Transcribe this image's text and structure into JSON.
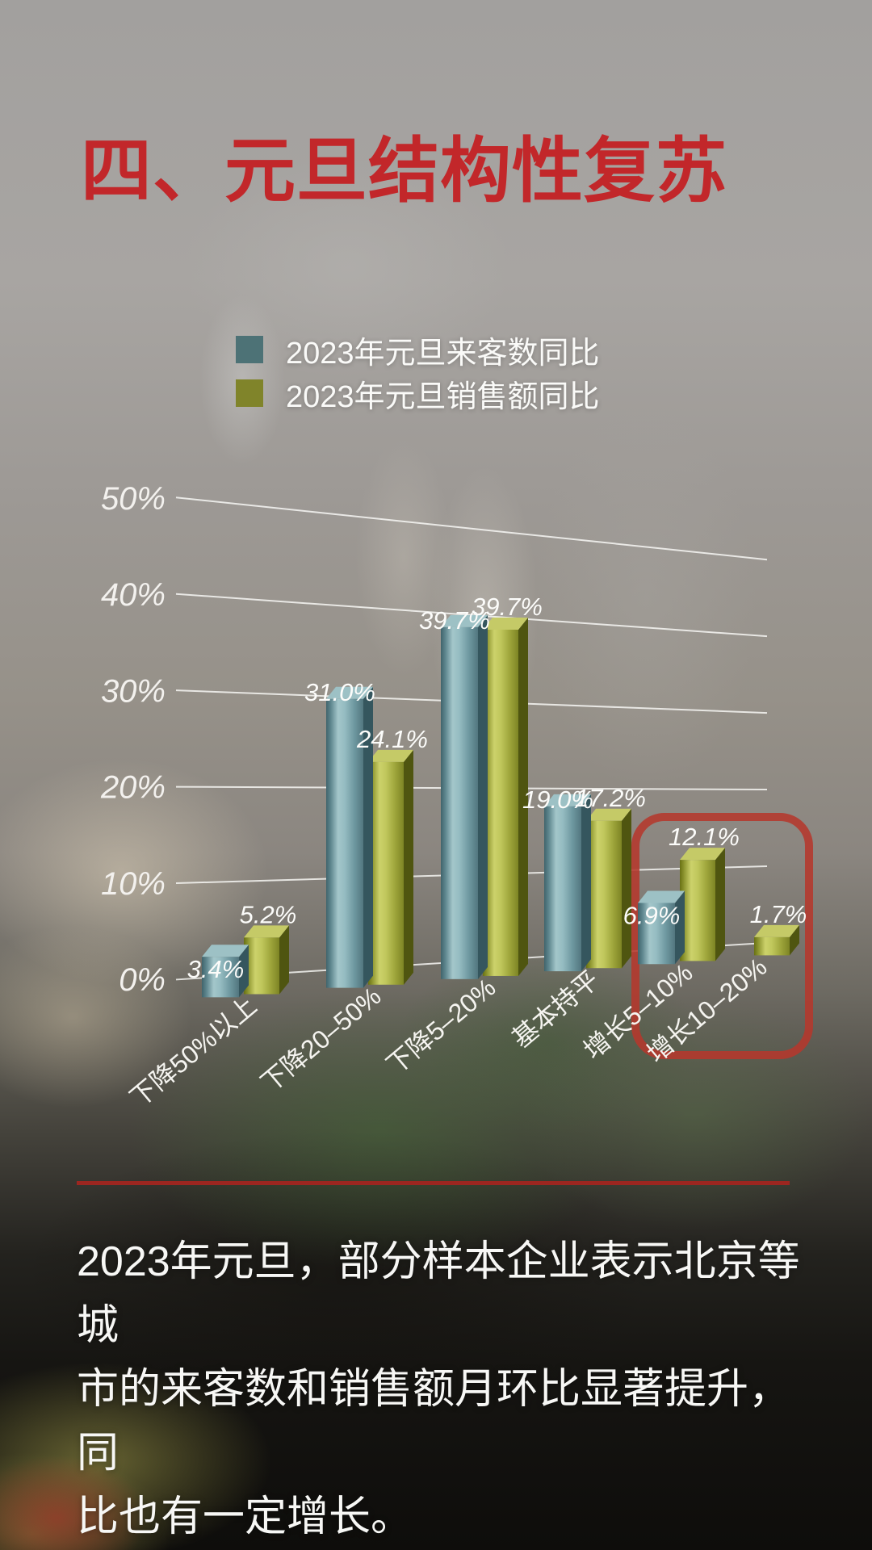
{
  "page": {
    "title": "四、元旦结构性复苏",
    "title_color": "#c2272a",
    "divider_color": "#9c2620"
  },
  "chart_data": {
    "type": "bar",
    "style": "3d-perspective",
    "categories": [
      "下降50%以上",
      "下降20–50%",
      "下降5–20%",
      "基本持平",
      "增长5–10%",
      "增长10–20%"
    ],
    "series": [
      {
        "name": "2023年元旦来客数同比",
        "color": "#4d7276",
        "values": [
          3.4,
          31.0,
          39.7,
          19.0,
          6.9,
          null
        ]
      },
      {
        "name": "2023年元旦销售额同比",
        "color": "#80842a",
        "values": [
          5.2,
          24.1,
          39.7,
          17.2,
          12.1,
          1.7
        ]
      }
    ],
    "value_suffix": "%",
    "yticks": [
      "0%",
      "10%",
      "20%",
      "30%",
      "40%",
      "50%"
    ],
    "ytick_values": [
      0,
      10,
      20,
      30,
      40,
      50
    ],
    "ylim": [
      0,
      50
    ],
    "grid": true,
    "legend_position": "top",
    "highlight_box": {
      "categories": [
        "增长5–10%",
        "增长10–20%"
      ],
      "color": "#b5382c"
    }
  },
  "annotation": {
    "lines": [
      "2023年元旦，部分样本企业表示北京等城",
      "市的来客数和销售额月环比显著提升，同",
      "比也有一定增长。"
    ]
  }
}
